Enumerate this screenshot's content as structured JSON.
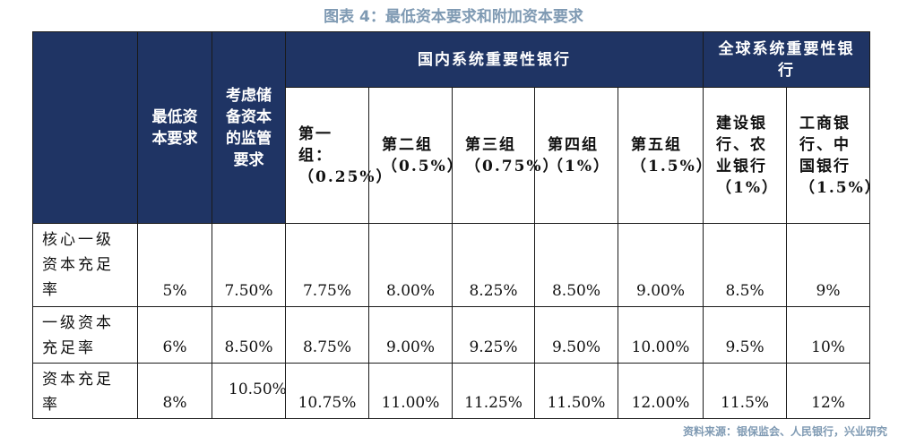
{
  "title": "图表 4：最低资本要求和附加资本要求",
  "source": "资料来源：银保监会、人民银行，兴业研究",
  "header": {
    "col_min": "最低资本要求",
    "col_reserve": "考虑储备资本的监管要求",
    "group_domestic": "国内系统重要性银行",
    "group_global": "全球系统重要性银行",
    "sub_cols": [
      "第一组：（0.25%）",
      "第二组（0.5%）",
      "第三组（0.75%）",
      "第四组（1%）",
      "第五组（1.5%）",
      "建设银行、农业银行（1%）",
      "工商银行、中国银行（1.5%）"
    ]
  },
  "rows": [
    {
      "label": "核心一级资本充足率",
      "values": [
        "5%",
        "7.50%",
        "7.75%",
        "8.00%",
        "8.25%",
        "8.50%",
        "9.00%",
        "8.5%",
        "9%"
      ]
    },
    {
      "label": "一级资本充足率",
      "values": [
        "6%",
        "8.50%",
        "8.75%",
        "9.00%",
        "9.25%",
        "9.50%",
        "10.00%",
        "9.5%",
        "10%"
      ]
    },
    {
      "label": "资本充足率",
      "values": [
        "8%",
        "10.50%",
        "10.75%",
        "11.00%",
        "11.25%",
        "11.50%",
        "12.00%",
        "11.5%",
        "12%"
      ]
    }
  ]
}
